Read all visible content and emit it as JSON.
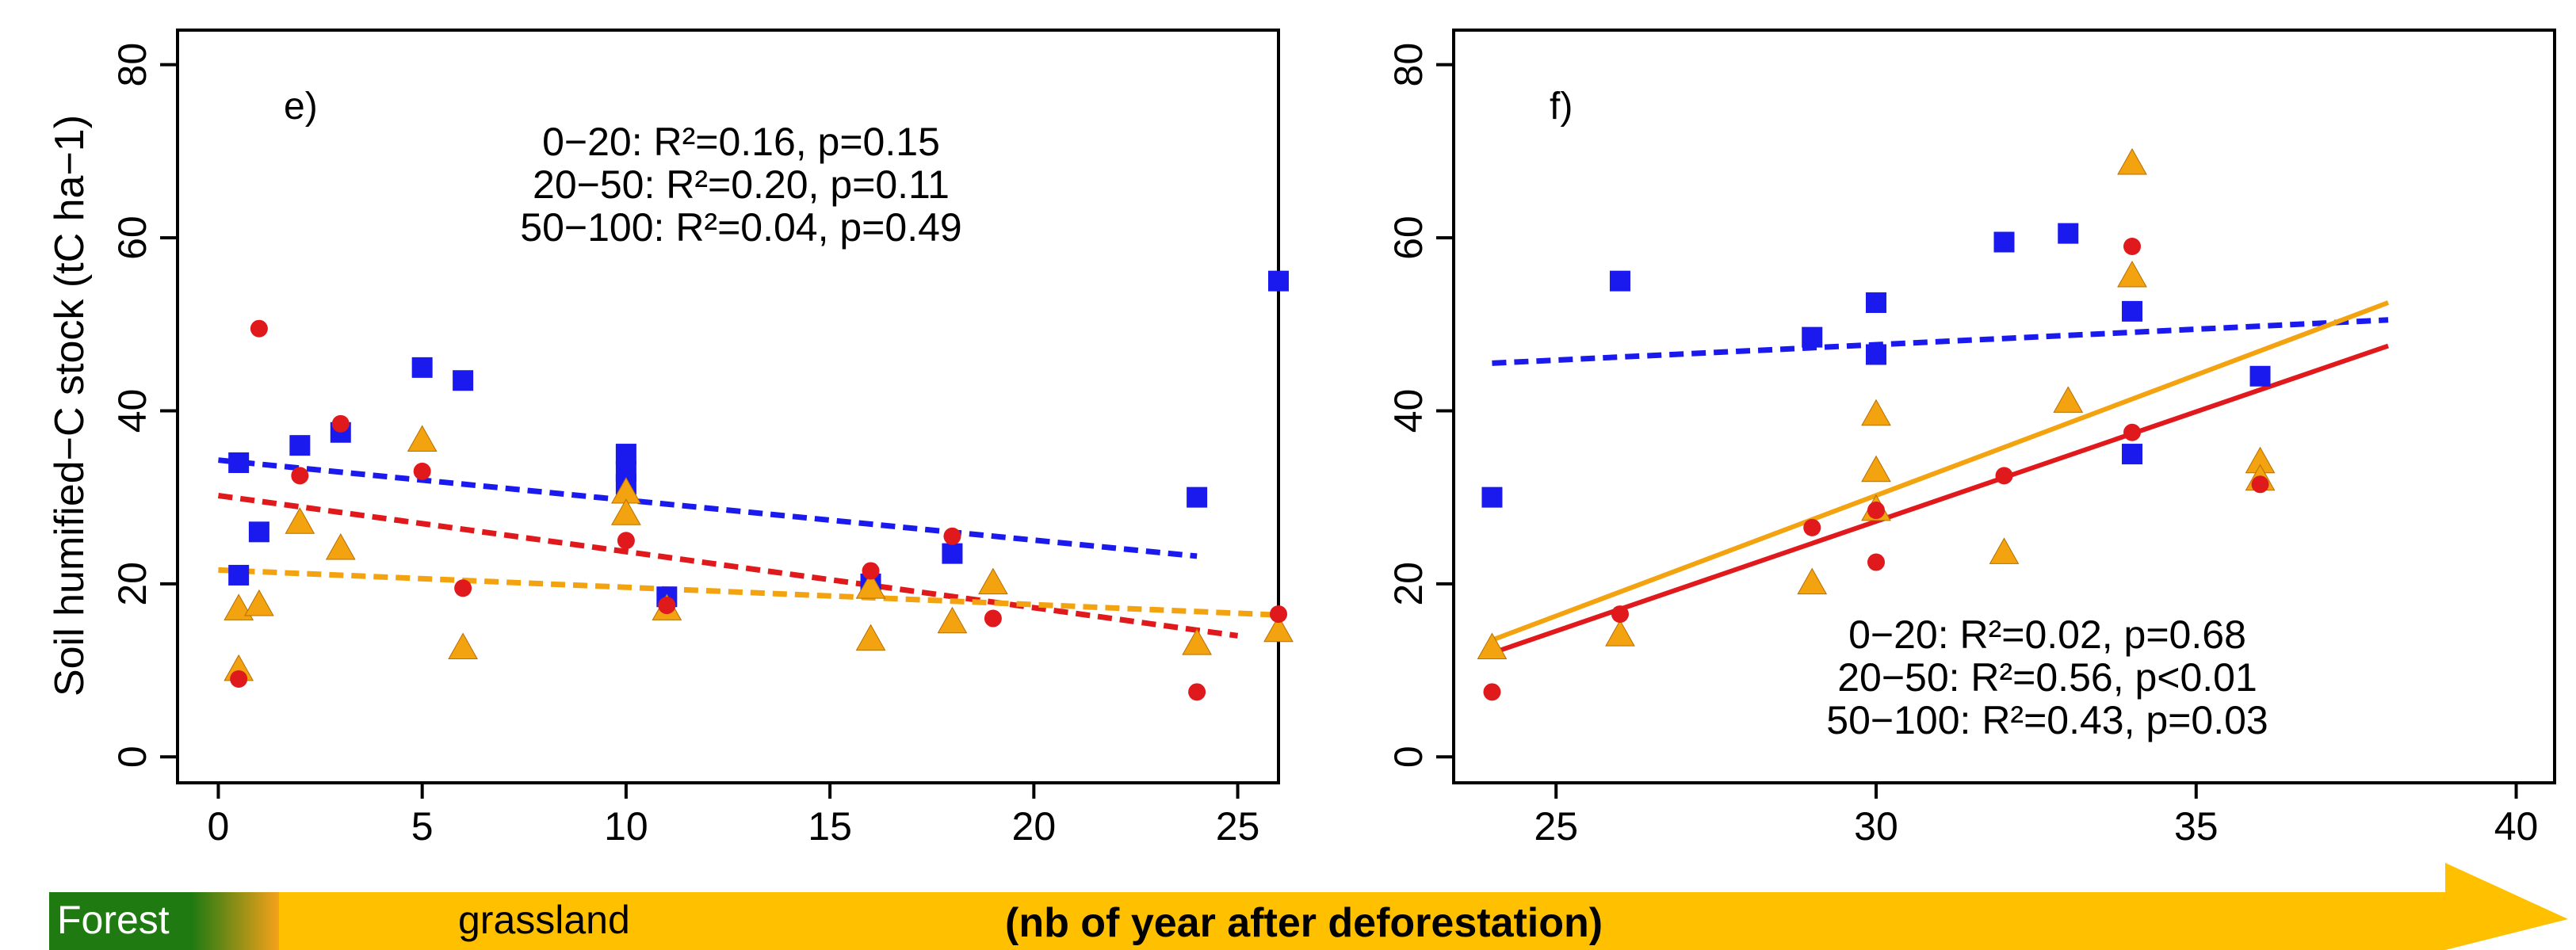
{
  "colors": {
    "depth_0_20": "#1a1aee",
    "depth_20_50": "#e0191c",
    "depth_50_100": "#f2a30f",
    "forest_band": "#1f7a12",
    "arrow": "#ffc000"
  },
  "bottom_band": {
    "forest_label": "Forest",
    "grassland_label": "grassland",
    "caption": "(nb of year after deforestation)"
  },
  "chart_data": [
    {
      "type": "scatter",
      "panel_label": "e)",
      "ylabel": "Soil humified−C stock (tC ha−1)",
      "xlim": [
        -1,
        26
      ],
      "ylim": [
        -3,
        84
      ],
      "xticks": [
        "0",
        "5",
        "10",
        "15",
        "20",
        "25"
      ],
      "yticks": [
        "0",
        "20",
        "40",
        "60",
        "80"
      ],
      "grid": false,
      "stats": [
        {
          "text": "0−20: R²=0.16, p=0.15",
          "series": "0-20"
        },
        {
          "text": "20−50: R²=0.20, p=0.11",
          "series": "20-50"
        },
        {
          "text": "50−100: R²=0.04, p=0.49",
          "series": "50-100"
        }
      ],
      "series": [
        {
          "id": "0-20",
          "marker": "square",
          "points": [
            [
              0.5,
              34
            ],
            [
              0.5,
              21
            ],
            [
              1,
              26
            ],
            [
              2,
              36
            ],
            [
              3,
              37.5
            ],
            [
              5,
              45
            ],
            [
              6,
              43.5
            ],
            [
              10,
              35
            ],
            [
              10,
              33
            ],
            [
              10,
              31.5
            ],
            [
              11,
              18.5
            ],
            [
              16,
              20
            ],
            [
              18,
              23.5
            ],
            [
              24,
              30
            ],
            [
              26,
              55
            ]
          ],
          "trend": {
            "style": "dashed",
            "from": [
              0,
              34.3
            ],
            "to": [
              24,
              23.2
            ]
          }
        },
        {
          "id": "20-50",
          "marker": "circle",
          "points": [
            [
              0.5,
              9
            ],
            [
              1,
              49.5
            ],
            [
              2,
              32.5
            ],
            [
              3,
              38.5
            ],
            [
              5,
              33
            ],
            [
              6,
              19.5
            ],
            [
              10,
              25
            ],
            [
              11,
              17.5
            ],
            [
              16,
              21.5
            ],
            [
              18,
              25.5
            ],
            [
              19,
              16
            ],
            [
              24,
              7.5
            ],
            [
              26,
              16.5
            ]
          ],
          "trend": {
            "style": "dashed",
            "from": [
              0,
              30.2
            ],
            "to": [
              25,
              14.0
            ]
          }
        },
        {
          "id": "50-100",
          "marker": "triangle",
          "points": [
            [
              0.5,
              17
            ],
            [
              0.5,
              10
            ],
            [
              1,
              17.5
            ],
            [
              2,
              27
            ],
            [
              3,
              24
            ],
            [
              5,
              36.5
            ],
            [
              6,
              12.5
            ],
            [
              10,
              30.5
            ],
            [
              10,
              28
            ],
            [
              11,
              17
            ],
            [
              16,
              19.5
            ],
            [
              16,
              13.5
            ],
            [
              18,
              15.5
            ],
            [
              19,
              20
            ],
            [
              24,
              13
            ],
            [
              26,
              14.5
            ]
          ],
          "trend": {
            "style": "dashed",
            "from": [
              0,
              21.6
            ],
            "to": [
              26,
              16.4
            ]
          }
        }
      ]
    },
    {
      "type": "scatter",
      "panel_label": "f)",
      "ylabel": "",
      "xlim": [
        23.4,
        40.6
      ],
      "ylim": [
        -3,
        84
      ],
      "xticks": [
        "25",
        "30",
        "35",
        "40"
      ],
      "yticks": [
        "0",
        "20",
        "40",
        "60",
        "80"
      ],
      "grid": false,
      "stats": [
        {
          "text": "0−20: R²=0.02, p=0.68",
          "series": "0-20"
        },
        {
          "text": "20−50: R²=0.56, p<0.01",
          "series": "20-50"
        },
        {
          "text": "50−100: R²=0.43, p=0.03",
          "series": "50-100"
        }
      ],
      "series": [
        {
          "id": "0-20",
          "marker": "square",
          "points": [
            [
              24,
              30
            ],
            [
              26,
              55
            ],
            [
              29,
              48.5
            ],
            [
              30,
              52.5
            ],
            [
              30,
              46.5
            ],
            [
              32,
              59.5
            ],
            [
              33,
              60.5
            ],
            [
              34,
              51.5
            ],
            [
              34,
              35
            ],
            [
              36,
              44
            ]
          ],
          "trend": {
            "style": "dashed",
            "from": [
              24,
              45.5
            ],
            "to": [
              38,
              50.5
            ]
          }
        },
        {
          "id": "20-50",
          "marker": "circle",
          "points": [
            [
              24,
              7.5
            ],
            [
              26,
              16.5
            ],
            [
              29,
              26.5
            ],
            [
              30,
              22.5
            ],
            [
              30,
              28.5
            ],
            [
              32,
              32.5
            ],
            [
              34,
              59
            ],
            [
              34,
              37.5
            ],
            [
              36,
              31.5
            ]
          ],
          "trend": {
            "style": "solid",
            "from": [
              24,
              12.0
            ],
            "to": [
              38,
              47.5
            ]
          }
        },
        {
          "id": "50-100",
          "marker": "triangle",
          "points": [
            [
              24,
              12.5
            ],
            [
              26,
              14
            ],
            [
              29,
              20
            ],
            [
              30,
              39.5
            ],
            [
              30,
              33
            ],
            [
              30,
              28.5
            ],
            [
              32,
              23.5
            ],
            [
              33,
              41
            ],
            [
              34,
              68.5
            ],
            [
              34,
              55.5
            ],
            [
              36,
              34
            ],
            [
              36,
              32
            ]
          ],
          "trend": {
            "style": "solid",
            "from": [
              24,
              13.5
            ],
            "to": [
              38,
              52.5
            ]
          }
        }
      ]
    }
  ]
}
